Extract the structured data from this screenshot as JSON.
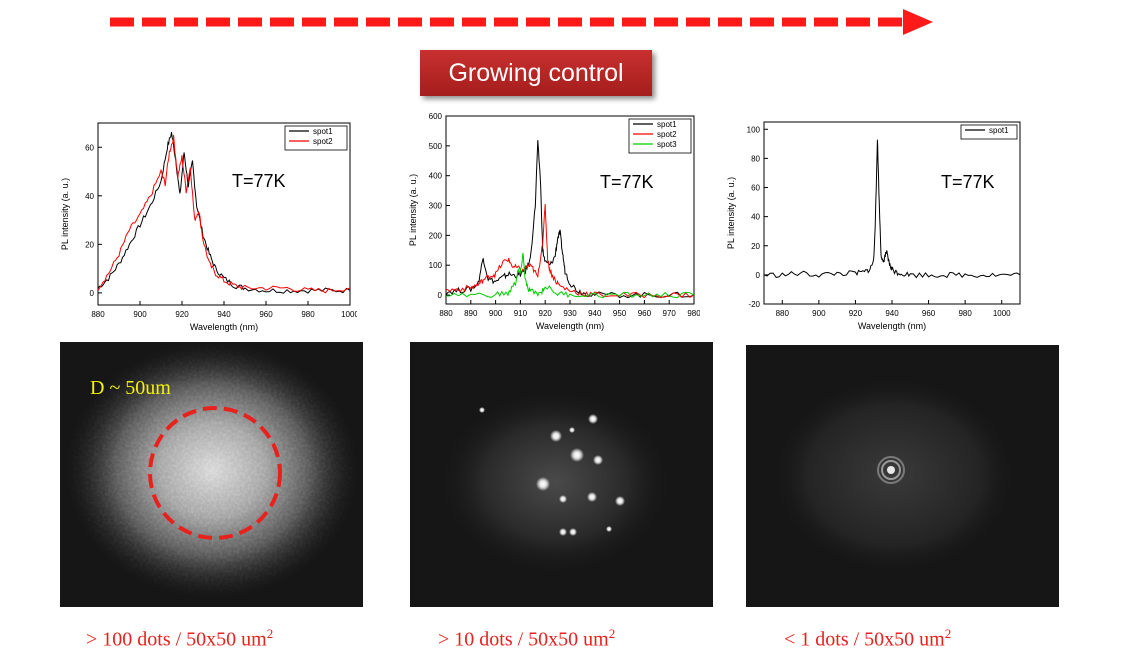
{
  "title": "Growing control",
  "colors": {
    "arrow": "#ff1a1a",
    "title_bg": "#b52524",
    "caption": "#e8211d",
    "d_label": "#f2f20a",
    "spot1": "#000000",
    "spot2": "#ff0000",
    "spot3": "#00cc00"
  },
  "chart_data": [
    {
      "type": "line",
      "xlabel": "Wavelength (nm)",
      "ylabel": "PL intensity (a. u.)",
      "xlim": [
        880,
        1000
      ],
      "ylim": [
        -5,
        70
      ],
      "xticks": [
        880,
        900,
        920,
        940,
        960,
        980,
        1000
      ],
      "yticks": [
        0,
        20,
        40,
        60
      ],
      "annotation": "T=77K",
      "legend_position": "top-right",
      "series": [
        {
          "name": "spot1",
          "color": "#000000",
          "x": [
            880,
            885,
            890,
            895,
            900,
            905,
            910,
            913,
            915,
            917,
            919,
            921,
            923,
            925,
            927,
            930,
            933,
            936,
            940,
            945,
            950,
            960,
            970,
            980,
            990,
            1000
          ],
          "y": [
            2,
            6,
            12,
            20,
            28,
            36,
            46,
            60,
            66,
            55,
            40,
            58,
            44,
            54,
            36,
            24,
            16,
            10,
            6,
            3,
            2,
            1,
            1,
            1,
            1,
            1
          ]
        },
        {
          "name": "spot2",
          "color": "#ff0000",
          "x": [
            880,
            885,
            890,
            895,
            900,
            905,
            910,
            912,
            914,
            916,
            918,
            920,
            922,
            924,
            926,
            928,
            930,
            933,
            936,
            940,
            945,
            950,
            960,
            970,
            980,
            990,
            1000
          ],
          "y": [
            2,
            8,
            16,
            26,
            32,
            40,
            50,
            45,
            58,
            64,
            48,
            56,
            42,
            52,
            30,
            34,
            22,
            12,
            8,
            5,
            3,
            2,
            2,
            2,
            1,
            1,
            2
          ]
        }
      ]
    },
    {
      "type": "line",
      "xlabel": "Wavelength (nm)",
      "ylabel": "PL intensity (a. u.)",
      "xlim": [
        880,
        980
      ],
      "ylim": [
        -30,
        600
      ],
      "xticks": [
        880,
        890,
        900,
        910,
        920,
        930,
        940,
        950,
        960,
        970,
        980
      ],
      "yticks": [
        0,
        100,
        200,
        300,
        400,
        500,
        600
      ],
      "annotation": "T=77K",
      "legend_position": "top-right",
      "series": [
        {
          "name": "spot1",
          "color": "#000000",
          "x": [
            880,
            885,
            890,
            893,
            895,
            897,
            900,
            903,
            905,
            908,
            910,
            912,
            914,
            916,
            917,
            918,
            919,
            920,
            922,
            924,
            925,
            926,
            927,
            928,
            930,
            933,
            936,
            940,
            950,
            960,
            970,
            980
          ],
          "y": [
            10,
            15,
            20,
            40,
            125,
            55,
            45,
            60,
            70,
            65,
            70,
            80,
            120,
            300,
            510,
            400,
            150,
            110,
            100,
            130,
            190,
            210,
            140,
            80,
            40,
            15,
            5,
            2,
            0,
            0,
            0,
            0
          ]
        },
        {
          "name": "spot2",
          "color": "#ff0000",
          "x": [
            880,
            885,
            890,
            893,
            895,
            898,
            900,
            903,
            905,
            907,
            909,
            911,
            913,
            915,
            917,
            919,
            920,
            921,
            922,
            924,
            926,
            930,
            935,
            940,
            950,
            960,
            970,
            980
          ],
          "y": [
            15,
            20,
            25,
            35,
            50,
            65,
            70,
            110,
            120,
            95,
            90,
            80,
            100,
            90,
            60,
            180,
            300,
            120,
            80,
            50,
            30,
            15,
            5,
            2,
            0,
            0,
            0,
            0
          ]
        },
        {
          "name": "spot3",
          "color": "#00cc00",
          "x": [
            880,
            890,
            900,
            905,
            908,
            909,
            910,
            911,
            912,
            913,
            915,
            918,
            920,
            925,
            930,
            940,
            950,
            960,
            970,
            980
          ],
          "y": [
            0,
            0,
            2,
            5,
            40,
            80,
            70,
            140,
            50,
            20,
            10,
            5,
            30,
            5,
            2,
            0,
            0,
            0,
            0,
            0
          ]
        }
      ]
    },
    {
      "type": "line",
      "xlabel": "Wavelength (nm)",
      "ylabel": "PL intensity (a. u.)",
      "xlim": [
        870,
        1010
      ],
      "ylim": [
        -20,
        105
      ],
      "xticks": [
        880,
        900,
        920,
        940,
        960,
        980,
        1000
      ],
      "yticks": [
        -20,
        0,
        20,
        40,
        60,
        80,
        100
      ],
      "annotation": "T=77K",
      "legend_position": "top-right",
      "series": [
        {
          "name": "spot1",
          "color": "#000000",
          "x": [
            870,
            880,
            890,
            900,
            910,
            920,
            925,
            928,
            930,
            931,
            932,
            933,
            934,
            935,
            936,
            937,
            938,
            939,
            940,
            942,
            945,
            950,
            960,
            970,
            980,
            990,
            1000,
            1010
          ],
          "y": [
            0,
            0,
            1,
            0,
            1,
            1,
            2,
            4,
            10,
            40,
            94,
            50,
            15,
            8,
            12,
            16,
            10,
            6,
            4,
            2,
            1,
            0,
            0,
            0,
            0,
            0,
            0,
            0
          ]
        }
      ]
    }
  ],
  "photos": [
    {
      "annotation": "D ~ 50um",
      "caption_prefix": "> 100 dots / 50x50 um",
      "caption_sup": "2"
    },
    {
      "caption_prefix": "> 10 dots / 50x50 um",
      "caption_sup": "2"
    },
    {
      "caption_prefix": "< 1 dots / 50x50 um",
      "caption_sup": "2"
    }
  ]
}
